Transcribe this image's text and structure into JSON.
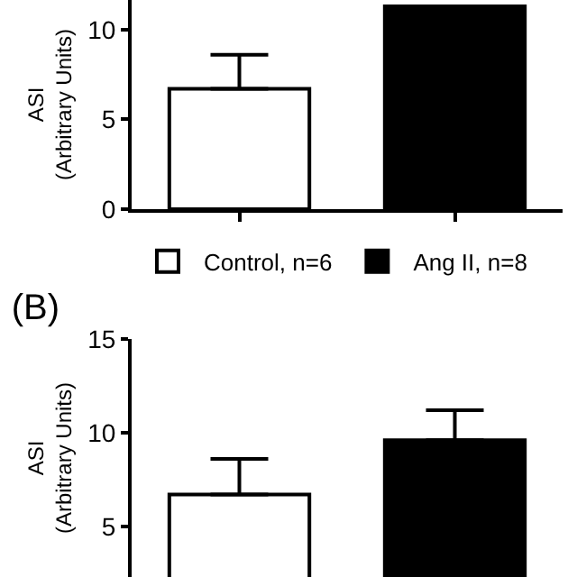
{
  "chart_data": [
    {
      "type": "bar",
      "ylabel": "ASI\n(Arbitrary Units)",
      "categories": [
        null,
        null
      ],
      "ylim": [
        0,
        11.65
      ],
      "yticks": [
        0,
        5,
        10
      ],
      "legend": "bottom",
      "grid": false,
      "series": [
        {
          "name": "Control, n=6",
          "color": "#ffffff",
          "values": [
            6.7,
            null
          ],
          "errors": [
            [
              6.7,
              8.6
            ],
            null
          ]
        },
        {
          "name": "Ang II, n=8",
          "color": "#000000",
          "values": [
            null,
            11.3
          ],
          "errors": [
            null,
            null
          ]
        }
      ]
    },
    {
      "type": "bar",
      "title": "(B)",
      "ylabel": "ASI\n(Arbitrary Units)",
      "categories": [
        null,
        null
      ],
      "ylim": [
        2.3,
        15
      ],
      "yticks": [
        5,
        10,
        15
      ],
      "legend": false,
      "grid": false,
      "series": [
        {
          "color": "#ffffff",
          "values": [
            6.7,
            null
          ],
          "errors": [
            [
              6.7,
              8.6
            ],
            null
          ]
        },
        {
          "color": "#000000",
          "values": [
            null,
            9.6
          ],
          "errors": [
            null,
            [
              9.6,
              11.2
            ]
          ]
        }
      ]
    }
  ]
}
